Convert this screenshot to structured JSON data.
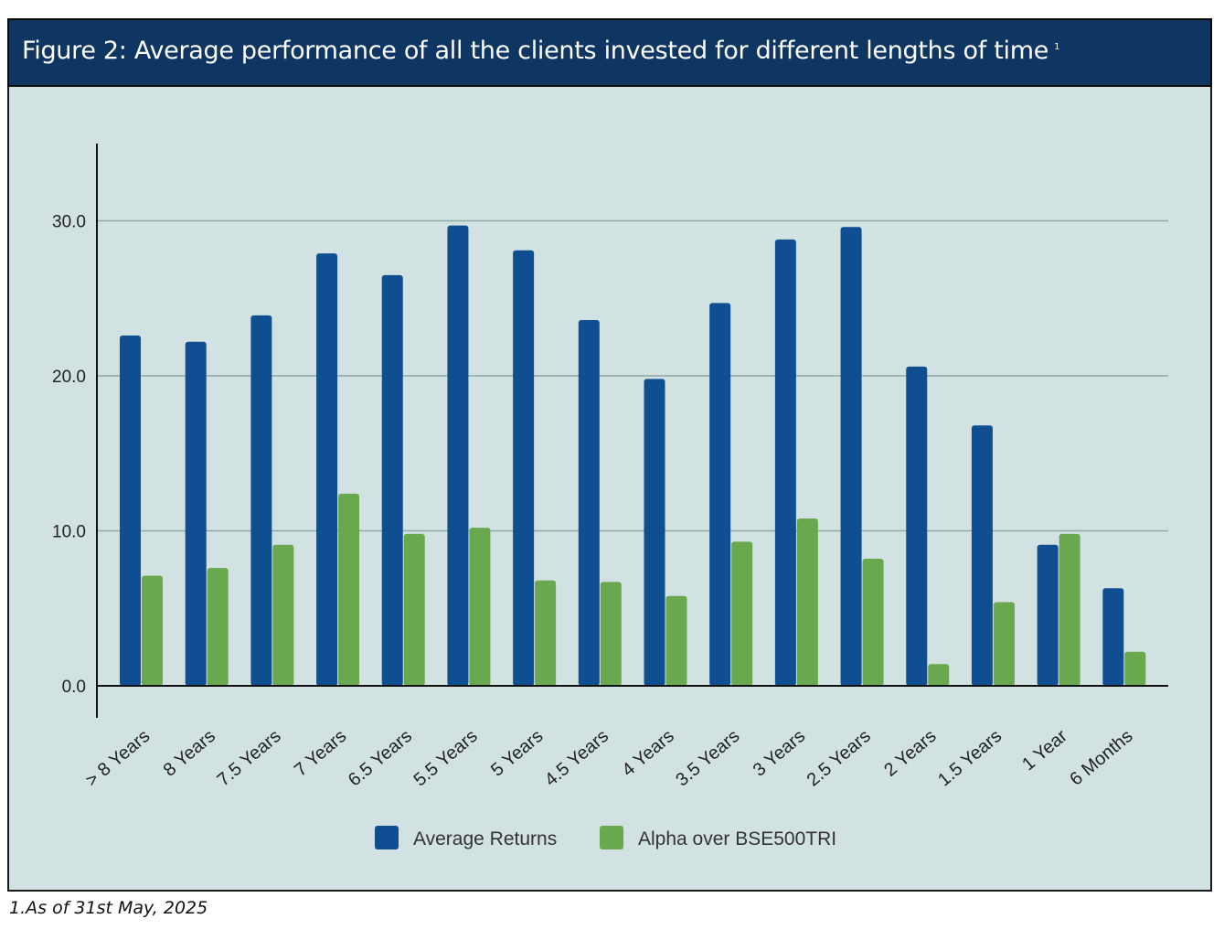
{
  "header": {
    "title": "Figure 2:  Average performance of all the clients invested for different lengths of time",
    "superscript": "1"
  },
  "footnote": "1.As of 31st May, 2025",
  "colors": {
    "header_bg": "#0f3562",
    "panel_bg": "#d2e2e3",
    "series_average": "#0f4f91",
    "series_alpha": "#6aa84f"
  },
  "chart_data": {
    "type": "bar",
    "title": "",
    "xlabel": "",
    "ylabel": "",
    "ylim": [
      0,
      35
    ],
    "yticks": [
      0,
      10,
      20,
      30
    ],
    "ytick_labels": [
      "0.0",
      "10.0",
      "20.0",
      "30.0"
    ],
    "grid": true,
    "legend_position": "bottom",
    "categories": [
      "> 8 Years",
      "8 Years",
      "7.5 Years",
      "7 Years",
      "6.5 Years",
      "5.5 Years",
      "5 Years",
      "4.5 Years",
      "4 Years",
      "3.5 Years",
      "3 Years",
      "2.5 Years",
      "2 Years",
      "1.5 Years",
      "1 Year",
      "6 Months"
    ],
    "series": [
      {
        "name": "Average Returns",
        "color": "#0f4f91",
        "values": [
          22.6,
          22.2,
          23.9,
          27.9,
          26.5,
          29.7,
          28.1,
          23.6,
          19.8,
          24.7,
          28.8,
          29.6,
          20.6,
          16.8,
          9.1,
          6.3
        ]
      },
      {
        "name": "Alpha over BSE500TRI",
        "color": "#6aa84f",
        "values": [
          7.1,
          7.6,
          9.1,
          12.4,
          9.8,
          10.2,
          6.8,
          6.7,
          5.8,
          9.3,
          10.8,
          8.2,
          1.4,
          5.4,
          9.8,
          2.2
        ]
      }
    ]
  }
}
